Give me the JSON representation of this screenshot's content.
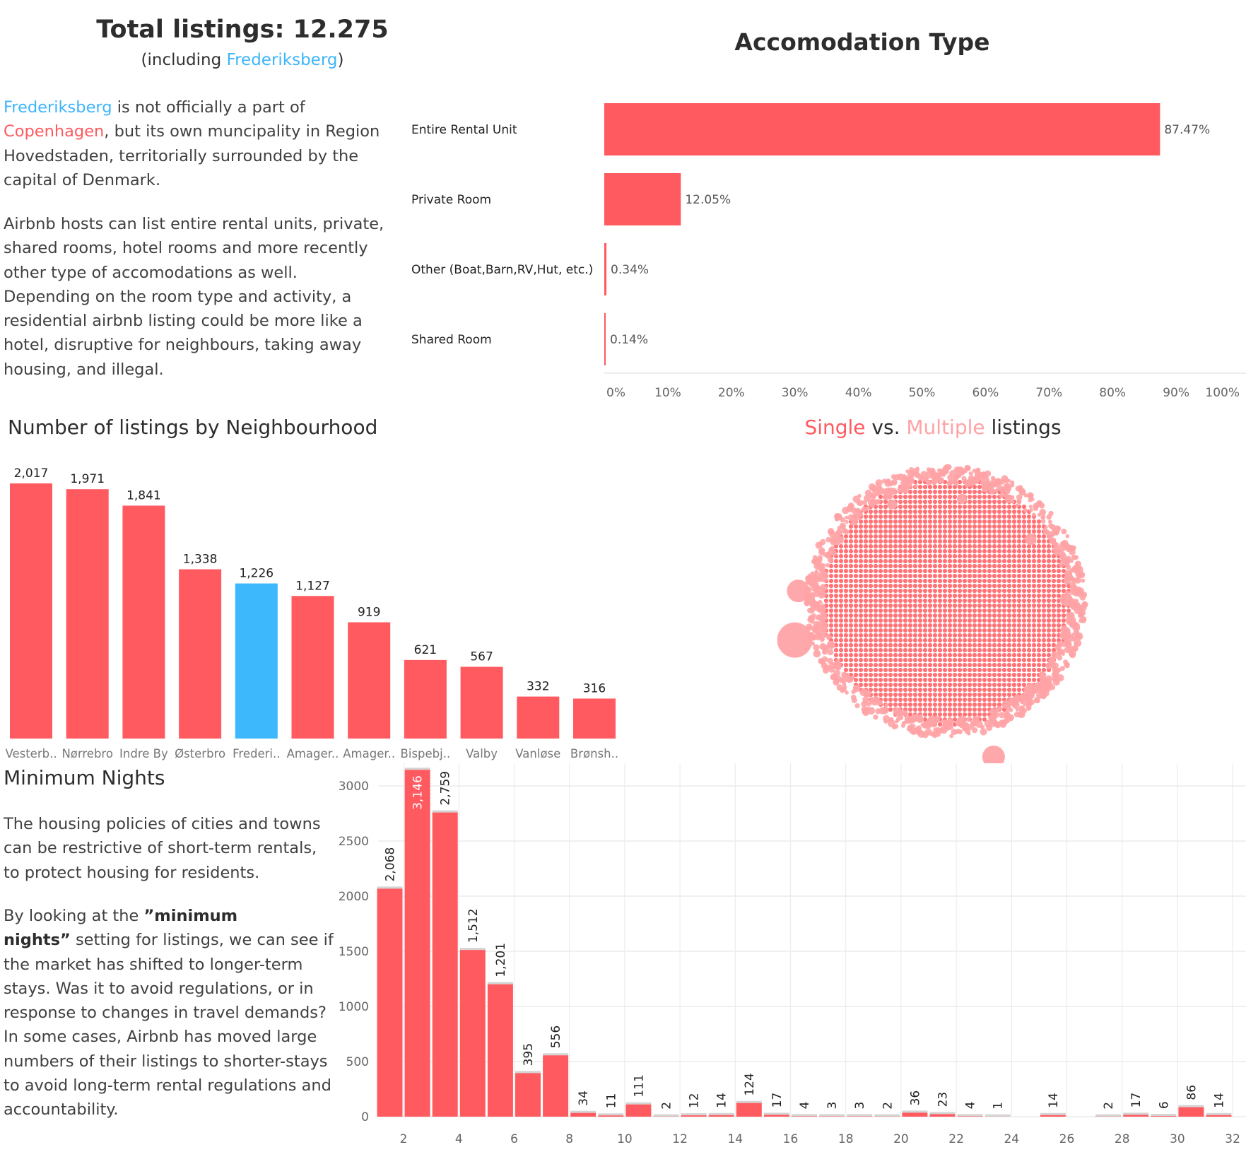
{
  "header": {
    "title": "Total listings: 12.275",
    "subtitle_parts": [
      {
        "text": "(including ",
        "style": ""
      },
      {
        "text": "Frederiksberg",
        "style": "hl-blue"
      },
      {
        "text": ")",
        "style": ""
      }
    ]
  },
  "intro": {
    "lines": [
      [
        {
          "text": "Frederiksberg",
          "style": "hl-blue"
        },
        {
          "text": " is not officially a part of",
          "style": ""
        }
      ],
      [
        {
          "text": "Copenhagen",
          "style": "hl-red"
        },
        {
          "text": ", but its own muncipality in Region",
          "style": ""
        }
      ],
      [
        {
          "text": "Hovedstaden, territorially surrounded by the",
          "style": ""
        }
      ],
      [
        {
          "text": "capital of Denmark.",
          "style": ""
        }
      ]
    ],
    "lines2": [
      [
        {
          "text": "Airbnb hosts can list entire rental units, private,",
          "style": ""
        }
      ],
      [
        {
          "text": "shared rooms, hotel rooms and more recently",
          "style": ""
        }
      ],
      [
        {
          "text": "other type of accomodations as well.",
          "style": ""
        }
      ],
      [
        {
          "text": "Depending on the room type and activity, a",
          "style": ""
        }
      ],
      [
        {
          "text": "residential airbnb listing could be more like a",
          "style": ""
        }
      ],
      [
        {
          "text": "hotel, disruptive for neighbours, taking away",
          "style": ""
        }
      ],
      [
        {
          "text": "housing, and illegal.",
          "style": ""
        }
      ]
    ]
  },
  "min_nights_text": {
    "title": "Minimum Nights",
    "lines": [
      [
        {
          "text": "The housing policies of cities and towns",
          "style": ""
        }
      ],
      [
        {
          "text": "can be restrictive of short-term rentals,",
          "style": ""
        }
      ],
      [
        {
          "text": "to protect housing for residents.",
          "style": ""
        }
      ]
    ],
    "lines2": [
      [
        {
          "text": "By looking at the ",
          "style": ""
        },
        {
          "text": "”minimum",
          "style": "b"
        }
      ],
      [
        {
          "text": "nights”",
          "style": "b"
        },
        {
          "text": " setting for listings, we can see if",
          "style": ""
        }
      ],
      [
        {
          "text": "the market has shifted to longer-term",
          "style": ""
        }
      ],
      [
        {
          "text": "stays. Was it to avoid regulations, or in",
          "style": ""
        }
      ],
      [
        {
          "text": "response to changes in travel demands?",
          "style": ""
        }
      ],
      [
        {
          "text": "In some cases, Airbnb has moved large",
          "style": ""
        }
      ],
      [
        {
          "text": "numbers of their listings to shorter-stays",
          "style": ""
        }
      ],
      [
        {
          "text": "to avoid long-term rental regulations and",
          "style": ""
        }
      ],
      [
        {
          "text": "accountability.",
          "style": ""
        }
      ]
    ]
  },
  "colors": {
    "primary": "#ff5a5f",
    "frederiksberg": "#3db8fd",
    "multiple": "#ffa3a6",
    "text": "#333333",
    "grid": "#ececec"
  },
  "chart_data": [
    {
      "type": "bar",
      "orientation": "horizontal",
      "title": "Accomodation Type",
      "categories": [
        "Entire Rental Unit",
        "Private Room",
        "Other (Boat,Barn,RV,Hut, etc.)",
        "Shared Room"
      ],
      "values": [
        87.47,
        12.05,
        0.34,
        0.14
      ],
      "value_labels": [
        "87.47%",
        "12.05%",
        "0.34%",
        "0.14%"
      ],
      "xlim": [
        0,
        100
      ],
      "x_ticks": [
        "0%",
        "10%",
        "20%",
        "30%",
        "40%",
        "50%",
        "60%",
        "70%",
        "80%",
        "90%",
        "100%"
      ],
      "grid": false
    },
    {
      "type": "bar",
      "title": "Number of listings by Neighbourhood",
      "categories": [
        "Vesterb..",
        "Nørrebro",
        "Indre By",
        "Østerbro",
        "Frederi..",
        "Amager..",
        "Amager..",
        "Bispebj..",
        "Valby",
        "Vanløse",
        "Brønsh.."
      ],
      "values": [
        2017,
        1971,
        1841,
        1338,
        1226,
        1127,
        919,
        621,
        567,
        332,
        316
      ],
      "value_labels": [
        "2,017",
        "1,971",
        "1,841",
        "1,338",
        "1,226",
        "1,127",
        "919",
        "621",
        "567",
        "332",
        "316"
      ],
      "highlight_index": 4,
      "grid": false
    },
    {
      "type": "scatter",
      "subtype": "packed-bubble",
      "title_parts": [
        {
          "text": "Single",
          "style": "hl-red"
        },
        {
          "text": " vs. ",
          "style": ""
        },
        {
          "text": "Multiple",
          "style": "hl-pink"
        },
        {
          "text": " listings",
          "style": ""
        }
      ],
      "series": [
        {
          "name": "Single",
          "color": "#ff5a5f"
        },
        {
          "name": "Multiple",
          "color": "#ffa3a6"
        }
      ]
    },
    {
      "type": "bar",
      "subtype": "histogram",
      "title": "Minimum Nights",
      "x": [
        1,
        2,
        3,
        4,
        5,
        6,
        7,
        8,
        9,
        10,
        11,
        12,
        13,
        14,
        15,
        16,
        17,
        18,
        19,
        20,
        21,
        22,
        23,
        25,
        27,
        28,
        29,
        30,
        31
      ],
      "values": [
        2068,
        3146,
        2759,
        1512,
        1201,
        395,
        556,
        34,
        11,
        111,
        2,
        12,
        14,
        124,
        17,
        4,
        3,
        3,
        2,
        36,
        23,
        4,
        1,
        14,
        2,
        17,
        6,
        86,
        14
      ],
      "value_labels": [
        "2,068",
        "3,146",
        "2,759",
        "1,512",
        "1,201",
        "395",
        "556",
        "34",
        "11",
        "111",
        "2",
        "12",
        "14",
        "124",
        "17",
        "4",
        "3",
        "3",
        "2",
        "36",
        "23",
        "4",
        "1",
        "14",
        "2",
        "17",
        "6",
        "86",
        "14"
      ],
      "xlim": [
        1,
        32
      ],
      "ylim": [
        0,
        3150
      ],
      "x_ticks": [
        "2",
        "4",
        "6",
        "8",
        "10",
        "12",
        "14",
        "16",
        "18",
        "20",
        "22",
        "24",
        "26",
        "28",
        "30",
        "32"
      ],
      "y_ticks": [
        "0",
        "500",
        "1000",
        "1500",
        "2000",
        "2500",
        "3000"
      ],
      "grid": true
    }
  ]
}
